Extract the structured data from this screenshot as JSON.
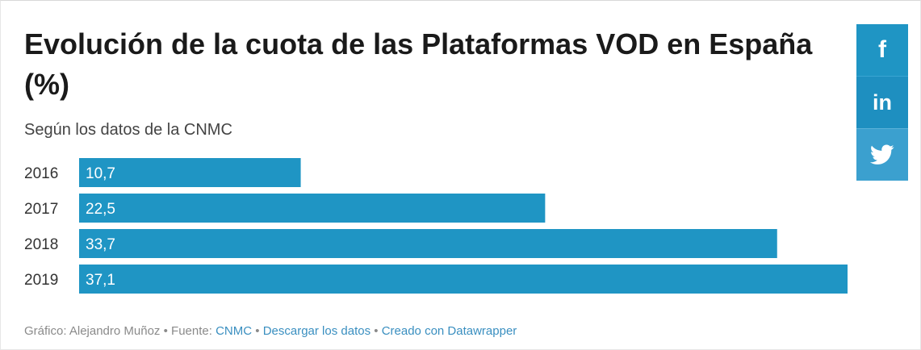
{
  "title": "Evolución de la cuota de las Plataformas VOD en España (%)",
  "subtitle": "Según los datos de la CNMC",
  "footer": {
    "author_text": "Gráfico: Alejandro Muñoz",
    "source_label": "Fuente:",
    "source_link": "CNMC",
    "download_link": "Descargar los datos",
    "made_with_link": "Creado con Datawrapper",
    "separator": "•"
  },
  "social": {
    "facebook_icon": "facebook-icon",
    "linkedin_icon": "linkedin-icon",
    "twitter_icon": "twitter-icon",
    "facebook_label": "f",
    "linkedin_label": "in"
  },
  "colors": {
    "bar": "#1f95c4",
    "bar_label": "#ffffff",
    "social_bg": "#1f95c4"
  },
  "chart_data": {
    "type": "bar",
    "orientation": "horizontal",
    "categories": [
      "2016",
      "2017",
      "2018",
      "2019"
    ],
    "values": [
      10.7,
      22.5,
      33.7,
      37.1
    ],
    "value_labels": [
      "10,7",
      "22,5",
      "33,7",
      "37,1"
    ],
    "title": "Evolución de la cuota de las Plataformas VOD en España (%)",
    "subtitle": "Según los datos de la CNMC",
    "xlim": [
      0,
      37.1
    ],
    "grid": false,
    "legend": "none"
  }
}
